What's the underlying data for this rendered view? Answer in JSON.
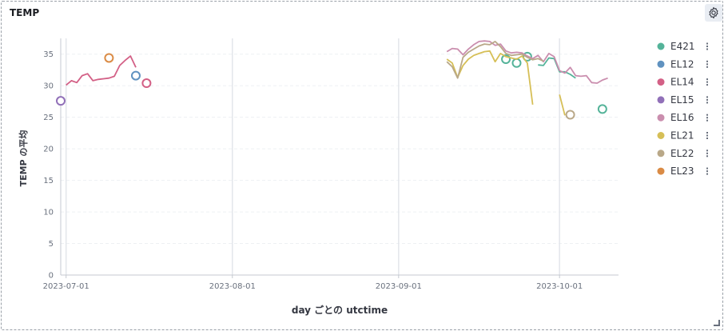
{
  "panel": {
    "title": "TEMP"
  },
  "chart_data": {
    "type": "line",
    "title": "TEMP",
    "xlabel": "day ごとの utctime",
    "ylabel": "TEMP の平均",
    "ylim": [
      0,
      37.5
    ],
    "xlim": [
      "2023-06-30",
      "2023-10-12"
    ],
    "yticks": [
      0,
      5,
      10,
      15,
      20,
      25,
      30,
      35
    ],
    "xticks": [
      "2023-07-01",
      "2023-08-01",
      "2023-09-01",
      "2023-10-01"
    ],
    "grid": true,
    "legend_position": "right",
    "series": [
      {
        "name": "E421",
        "color": "#54b399",
        "points": [
          [
            "2023-09-21",
            34.2
          ],
          [
            "2023-09-23",
            33.6
          ],
          [
            "2023-09-25",
            34.6
          ],
          [
            "2023-09-27",
            33.3
          ],
          [
            "2023-09-28",
            33.2
          ],
          [
            "2023-09-29",
            34.4
          ],
          [
            "2023-09-30",
            34.3
          ],
          [
            "2023-10-01",
            32.2
          ],
          [
            "2023-10-02",
            32.2
          ],
          [
            "2023-10-03",
            31.8
          ],
          [
            "2023-10-04",
            31.2
          ],
          [
            "2023-10-09",
            26.3
          ]
        ]
      },
      {
        "name": "EL12",
        "color": "#6092c0",
        "points": [
          [
            "2023-07-14",
            31.6
          ]
        ]
      },
      {
        "name": "EL14",
        "color": "#d36086",
        "points": [
          [
            "2023-07-01",
            30.1
          ],
          [
            "2023-07-02",
            30.8
          ],
          [
            "2023-07-03",
            30.5
          ],
          [
            "2023-07-04",
            31.6
          ],
          [
            "2023-07-05",
            31.9
          ],
          [
            "2023-07-06",
            30.8
          ],
          [
            "2023-07-07",
            31.0
          ],
          [
            "2023-07-08",
            31.1
          ],
          [
            "2023-07-09",
            31.2
          ],
          [
            "2023-07-10",
            31.5
          ],
          [
            "2023-07-11",
            33.2
          ],
          [
            "2023-07-12",
            34.0
          ],
          [
            "2023-07-13",
            34.7
          ],
          [
            "2023-07-14",
            32.9
          ],
          [
            "2023-07-16",
            30.4
          ]
        ]
      },
      {
        "name": "EL15",
        "color": "#9170b8",
        "points": [
          [
            "2023-06-30",
            27.6
          ]
        ]
      },
      {
        "name": "EL16",
        "color": "#ca8eae",
        "points": [
          [
            "2023-09-10",
            35.4
          ],
          [
            "2023-09-11",
            35.9
          ],
          [
            "2023-09-12",
            35.8
          ],
          [
            "2023-09-13",
            34.9
          ],
          [
            "2023-09-14",
            35.8
          ],
          [
            "2023-09-15",
            36.5
          ],
          [
            "2023-09-16",
            37.0
          ],
          [
            "2023-09-17",
            37.1
          ],
          [
            "2023-09-18",
            37.0
          ],
          [
            "2023-09-19",
            36.4
          ],
          [
            "2023-09-20",
            36.6
          ],
          [
            "2023-09-21",
            35.5
          ],
          [
            "2023-09-22",
            35.2
          ],
          [
            "2023-09-23",
            35.3
          ],
          [
            "2023-09-24",
            35.2
          ],
          [
            "2023-09-25",
            34.7
          ],
          [
            "2023-09-26",
            34.3
          ],
          [
            "2023-09-27",
            34.8
          ],
          [
            "2023-09-28",
            33.8
          ],
          [
            "2023-09-29",
            35.1
          ],
          [
            "2023-09-30",
            34.6
          ],
          [
            "2023-10-01",
            32.4
          ],
          [
            "2023-10-02",
            32.0
          ],
          [
            "2023-10-03",
            32.9
          ],
          [
            "2023-10-04",
            31.6
          ],
          [
            "2023-10-05",
            31.5
          ],
          [
            "2023-10-06",
            31.6
          ],
          [
            "2023-10-07",
            30.5
          ],
          [
            "2023-10-08",
            30.4
          ],
          [
            "2023-10-09",
            30.9
          ],
          [
            "2023-10-10",
            31.2
          ]
        ]
      },
      {
        "name": "EL21",
        "color": "#d6bf57",
        "points": [
          [
            "2023-09-10",
            34.2
          ],
          [
            "2023-09-11",
            33.6
          ],
          [
            "2023-09-12",
            31.3
          ],
          [
            "2023-09-13",
            33.2
          ],
          [
            "2023-09-14",
            34.2
          ],
          [
            "2023-09-15",
            34.8
          ],
          [
            "2023-09-16",
            35.1
          ],
          [
            "2023-09-17",
            35.4
          ],
          [
            "2023-09-18",
            35.5
          ],
          [
            "2023-09-19",
            33.8
          ],
          [
            "2023-09-20",
            35.1
          ],
          [
            "2023-09-21",
            34.6
          ],
          [
            "2023-09-22",
            34.4
          ],
          [
            "2023-09-23",
            34.2
          ],
          [
            "2023-09-24",
            34.7
          ],
          [
            "2023-09-25",
            33.6
          ],
          [
            "2023-09-26",
            27.0
          ],
          [
            "2023-10-01",
            28.6
          ],
          [
            "2023-10-02",
            25.3
          ]
        ]
      },
      {
        "name": "EL22",
        "color": "#b9a888",
        "points": [
          [
            "2023-09-10",
            33.8
          ],
          [
            "2023-09-11",
            33.0
          ],
          [
            "2023-09-12",
            31.2
          ],
          [
            "2023-09-13",
            34.5
          ],
          [
            "2023-09-14",
            35.3
          ],
          [
            "2023-09-15",
            35.8
          ],
          [
            "2023-09-16",
            36.3
          ],
          [
            "2023-09-17",
            36.6
          ],
          [
            "2023-09-18",
            36.5
          ],
          [
            "2023-09-19",
            37.0
          ],
          [
            "2023-09-20",
            36.2
          ],
          [
            "2023-09-21",
            35.1
          ],
          [
            "2023-09-22",
            34.8
          ],
          [
            "2023-09-23",
            34.9
          ],
          [
            "2023-09-24",
            35.0
          ],
          [
            "2023-09-25",
            34.5
          ],
          [
            "2023-09-26",
            34.1
          ],
          [
            "2023-09-27",
            34.3
          ],
          [
            "2023-09-28",
            33.9
          ],
          [
            "2023-10-03",
            25.4
          ]
        ]
      },
      {
        "name": "EL23",
        "color": "#da8b45",
        "points": [
          [
            "2023-07-09",
            34.4
          ]
        ]
      }
    ]
  }
}
